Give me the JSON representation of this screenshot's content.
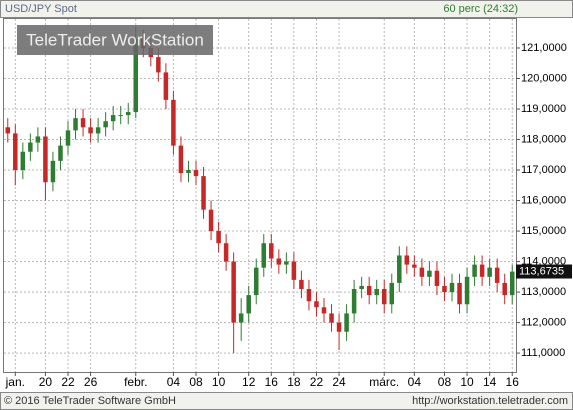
{
  "chart_data": {
    "type": "candlestick",
    "title": "USD/JPY Spot",
    "subtitle": "60 perc (24:32)",
    "watermark": "TeleTrader WorkStation",
    "footer_left": "© 2016 TeleTrader Software GmbH",
    "footer_right": "http://workstation.teletrader.com",
    "up_color": "#2e7d32",
    "down_color": "#c62828",
    "categories": [
      null,
      "jan.",
      null,
      null,
      null,
      "20",
      null,
      null,
      "22",
      null,
      null,
      "26",
      null,
      null,
      null,
      null,
      null,
      "febr.",
      null,
      null,
      null,
      null,
      "04",
      null,
      null,
      "08",
      null,
      null,
      "10",
      null,
      null,
      null,
      "12",
      null,
      null,
      "16",
      null,
      null,
      "18",
      null,
      null,
      "22",
      null,
      null,
      "24",
      null,
      null,
      null,
      null,
      null,
      "márc.",
      null,
      null,
      null,
      "04",
      null,
      null,
      null,
      "08",
      null,
      null,
      "10",
      null,
      null,
      "14",
      null,
      null,
      "16"
    ],
    "open": [
      118.4,
      118.2,
      117.0,
      117.6,
      117.9,
      118.1,
      116.6,
      117.3,
      117.8,
      118.3,
      118.7,
      118.4,
      118.2,
      118.4,
      118.6,
      118.8,
      118.8,
      118.9,
      121.3,
      121.0,
      120.7,
      120.2,
      119.3,
      117.8,
      116.9,
      117.0,
      116.8,
      115.7,
      115.0,
      114.6,
      114.0,
      112.0,
      112.3,
      112.9,
      113.8,
      114.6,
      114.1,
      113.9,
      114.0,
      113.4,
      113.1,
      112.7,
      112.5,
      112.3,
      112.0,
      111.7,
      112.3,
      113.1,
      113.2,
      112.9,
      113.1,
      112.6,
      113.3,
      114.2,
      113.9,
      113.8,
      113.5,
      113.7,
      113.2,
      113.0,
      113.3,
      112.6,
      113.5,
      113.9,
      113.5,
      113.8,
      113.3,
      112.9
    ],
    "high": [
      118.7,
      118.5,
      117.9,
      118.2,
      118.4,
      118.4,
      117.6,
      118.1,
      118.6,
      119.0,
      119.0,
      118.7,
      118.7,
      118.9,
      119.1,
      119.1,
      119.2,
      121.7,
      121.6,
      121.3,
      121.0,
      120.5,
      119.6,
      118.1,
      117.3,
      117.3,
      117.1,
      116.0,
      115.3,
      114.9,
      114.3,
      112.8,
      113.2,
      114.1,
      114.9,
      114.9,
      114.4,
      114.3,
      114.3,
      113.7,
      113.4,
      113.0,
      112.8,
      112.6,
      112.3,
      112.6,
      113.4,
      113.5,
      113.5,
      113.4,
      113.4,
      113.6,
      114.5,
      114.5,
      114.2,
      114.1,
      114.0,
      114.0,
      113.5,
      113.6,
      113.6,
      113.8,
      114.2,
      114.2,
      114.1,
      114.1,
      113.6,
      113.9
    ],
    "low": [
      117.9,
      116.5,
      116.7,
      117.3,
      117.6,
      116.0,
      116.3,
      117.0,
      117.5,
      118.0,
      118.1,
      117.9,
      117.9,
      118.1,
      118.3,
      118.5,
      118.5,
      118.7,
      120.7,
      120.4,
      119.9,
      119.0,
      117.5,
      116.6,
      116.6,
      116.5,
      115.4,
      114.7,
      114.3,
      113.7,
      111.0,
      111.4,
      112.0,
      112.6,
      113.5,
      113.8,
      113.6,
      113.6,
      113.1,
      112.8,
      112.4,
      112.2,
      112.0,
      111.7,
      111.1,
      111.4,
      112.0,
      112.8,
      112.6,
      112.6,
      112.3,
      112.3,
      113.0,
      113.6,
      113.5,
      113.2,
      113.2,
      112.9,
      112.7,
      112.7,
      112.3,
      112.3,
      113.2,
      113.2,
      113.2,
      113.0,
      112.6,
      112.6
    ],
    "close": [
      118.2,
      117.0,
      117.6,
      117.9,
      118.1,
      116.6,
      117.3,
      117.8,
      118.3,
      118.7,
      118.4,
      118.2,
      118.4,
      118.6,
      118.8,
      118.8,
      118.9,
      121.3,
      121.0,
      120.7,
      120.2,
      119.3,
      117.8,
      116.9,
      117.0,
      116.8,
      115.7,
      115.0,
      114.6,
      114.0,
      112.0,
      112.3,
      112.9,
      113.8,
      114.6,
      114.1,
      113.9,
      114.0,
      113.4,
      113.1,
      112.7,
      112.5,
      112.3,
      112.0,
      111.7,
      112.3,
      113.1,
      113.2,
      112.9,
      113.1,
      112.6,
      113.3,
      114.2,
      113.9,
      113.8,
      113.5,
      113.7,
      113.2,
      113.0,
      113.3,
      112.6,
      113.5,
      113.9,
      113.5,
      113.8,
      113.3,
      112.9,
      113.67
    ],
    "last_price": 113.6735,
    "last_price_label": "113,6735",
    "ylim": [
      110.38,
      121.95
    ],
    "yticks": [
      {
        "value": 111,
        "label": "111,0000"
      },
      {
        "value": 112,
        "label": "112,0000"
      },
      {
        "value": 113,
        "label": "113,0000"
      },
      {
        "value": 114,
        "label": "114,0000"
      },
      {
        "value": 115,
        "label": "115,0000"
      },
      {
        "value": 116,
        "label": "116,0000"
      },
      {
        "value": 117,
        "label": "117,0000"
      },
      {
        "value": 118,
        "label": "118,0000"
      },
      {
        "value": 119,
        "label": "119,0000"
      },
      {
        "value": 120,
        "label": "120,0000"
      },
      {
        "value": 121,
        "label": "121,0000"
      }
    ],
    "grid": true
  }
}
